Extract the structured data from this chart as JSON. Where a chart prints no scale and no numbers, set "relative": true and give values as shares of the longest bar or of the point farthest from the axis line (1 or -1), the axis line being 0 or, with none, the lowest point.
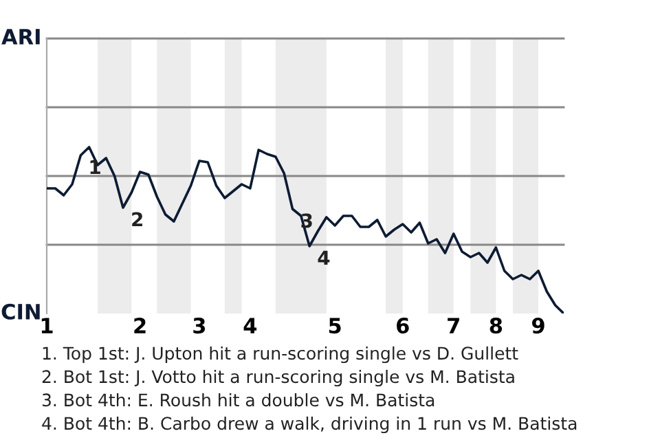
{
  "chart_data": {
    "type": "line",
    "relative": true,
    "categories": [
      "1",
      null,
      null,
      null,
      null,
      null,
      null,
      null,
      null,
      null,
      null,
      "2",
      null,
      null,
      null,
      null,
      null,
      null,
      "3",
      null,
      null,
      null,
      null,
      null,
      "4",
      null,
      null,
      null,
      null,
      null,
      null,
      null,
      null,
      null,
      "5",
      null,
      null,
      null,
      null,
      null,
      null,
      null,
      "6",
      null,
      null,
      null,
      null,
      null,
      "7",
      null,
      null,
      null,
      null,
      "8",
      null,
      null,
      null,
      null,
      "9",
      null,
      null,
      null
    ],
    "series": [
      {
        "color": "#0d1b33",
        "values": [
          -0.09,
          -0.09,
          -0.14,
          -0.06,
          0.15,
          0.21,
          0.08,
          0.13,
          0.0,
          -0.23,
          -0.12,
          0.03,
          0.01,
          -0.15,
          -0.28,
          -0.33,
          -0.2,
          -0.07,
          0.11,
          0.1,
          -0.07,
          -0.16,
          -0.11,
          -0.06,
          -0.09,
          0.19,
          0.16,
          0.14,
          0.02,
          -0.24,
          -0.29,
          -0.51,
          -0.4,
          -0.3,
          -0.36,
          -0.29,
          -0.29,
          -0.37,
          -0.37,
          -0.32,
          -0.44,
          -0.39,
          -0.35,
          -0.41,
          -0.34,
          -0.49,
          -0.46,
          -0.56,
          -0.42,
          -0.55,
          -0.59,
          -0.56,
          -0.63,
          -0.52,
          -0.69,
          -0.75,
          -0.72,
          -0.75,
          -0.69,
          -0.84,
          -0.94,
          -1
        ]
      }
    ],
    "marker": "none",
    "line_style": "solid",
    "ref_lines": [
      {
        "axis": "y",
        "value": -0.5,
        "color": "#888888"
      },
      {
        "axis": "y",
        "value": 0,
        "color": "#888888"
      },
      {
        "axis": "y",
        "value": 0.5,
        "color": "#888888"
      },
      {
        "axis": "y",
        "value": 1,
        "color": "#888888"
      }
    ],
    "annotations": [
      "ARI",
      "CIN",
      "1",
      "2",
      "3",
      "4",
      "1. Top 1st: J. Upton hit a run-scoring single vs D. Gullett",
      "2. Bot 1st: J. Votto hit a run-scoring single vs M. Batista",
      "3. Bot 4th: E. Roush hit a double vs M. Batista",
      "4. Bot 4th: B. Carbo drew a walk, driving in 1 run vs M. Batista"
    ]
  }
}
